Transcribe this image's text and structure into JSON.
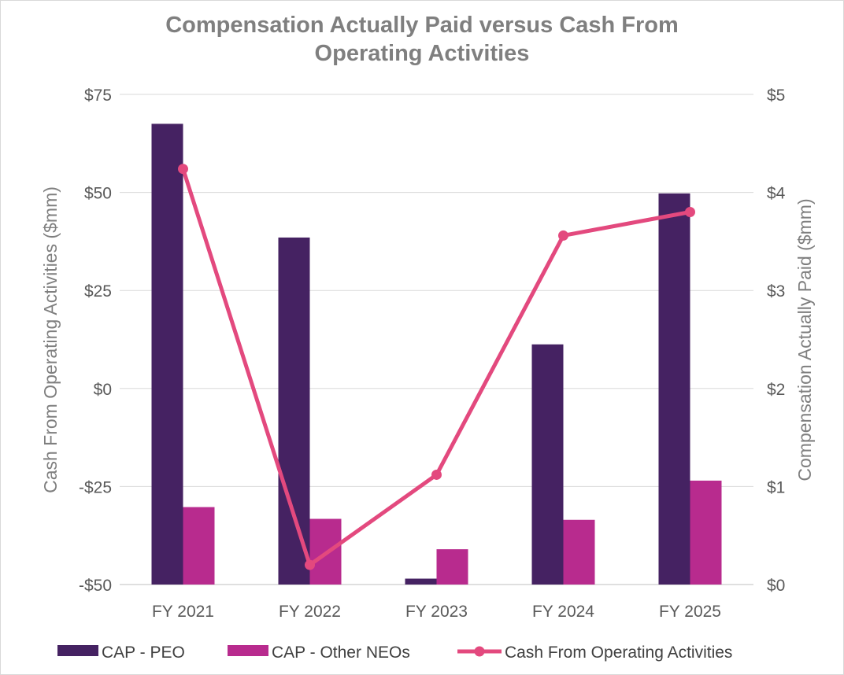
{
  "chart_data": {
    "type": "bar",
    "title_line1": "Compensation Actually Paid versus Cash From",
    "title_line2": "Operating Activities",
    "categories": [
      "FY 2021",
      "FY 2022",
      "FY 2023",
      "FY 2024",
      "FY 2025"
    ],
    "left_axis": {
      "label": "Cash From Operating Activities ($mm)",
      "range": [
        -50,
        75
      ],
      "ticks": [
        -50,
        -25,
        0,
        25,
        50,
        75
      ],
      "tick_labels": [
        "-$50",
        "-$25",
        "$0",
        "$25",
        "$50",
        "$75"
      ]
    },
    "right_axis": {
      "label": "Compensation Actually Paid ($mm)",
      "range": [
        0,
        5
      ],
      "ticks": [
        0,
        1,
        2,
        3,
        4,
        5
      ],
      "tick_labels": [
        "$0",
        "$1",
        "$2",
        "$3",
        "$4",
        "$5"
      ]
    },
    "series": [
      {
        "name": "CAP - PEO",
        "type": "bar",
        "axis": "right",
        "color": "#452262",
        "values": [
          4.7,
          3.54,
          0.06,
          2.45,
          3.99
        ]
      },
      {
        "name": "CAP - Other NEOs",
        "type": "bar",
        "axis": "right",
        "color": "#b82b8e",
        "values": [
          0.79,
          0.67,
          0.36,
          0.66,
          1.06
        ]
      },
      {
        "name": "Cash From Operating Activities",
        "type": "line",
        "axis": "left",
        "color": "#e3497e",
        "values": [
          56,
          -45,
          -22,
          39,
          45
        ]
      }
    ],
    "legend": "bottom",
    "grid": true
  }
}
